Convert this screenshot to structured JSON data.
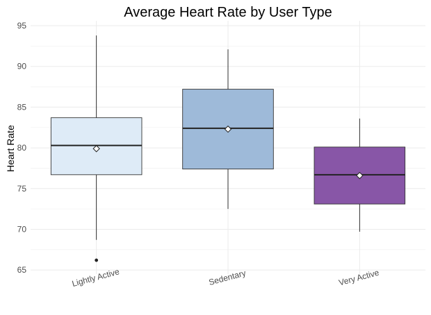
{
  "chart_data": {
    "type": "boxplot",
    "title": "Average Heart Rate by User Type",
    "xlabel": "",
    "ylabel": "Heart Rate",
    "ylim": [
      64.5,
      95.6
    ],
    "yticks": [
      65,
      70,
      75,
      80,
      85,
      90,
      95
    ],
    "grid": true,
    "legend": "none",
    "categories": [
      "Lightly Active",
      "Sedentary",
      "Very Active"
    ],
    "boxes": [
      {
        "category": "Lightly Active",
        "whisker_low": 68.7,
        "q1": 76.7,
        "median": 80.3,
        "q3": 83.7,
        "whisker_high": 93.8,
        "mean": 79.9,
        "outliers": [
          66.2
        ],
        "color": "#deebf7"
      },
      {
        "category": "Sedentary",
        "whisker_low": 72.5,
        "q1": 77.4,
        "median": 82.4,
        "q3": 87.2,
        "whisker_high": 92.1,
        "mean": 82.3,
        "outliers": [],
        "color": "#9ebad9"
      },
      {
        "category": "Very Active",
        "whisker_low": 69.7,
        "q1": 73.1,
        "median": 76.7,
        "q3": 80.1,
        "whisker_high": 83.6,
        "mean": 76.6,
        "outliers": [],
        "color": "#8856a7"
      }
    ]
  }
}
